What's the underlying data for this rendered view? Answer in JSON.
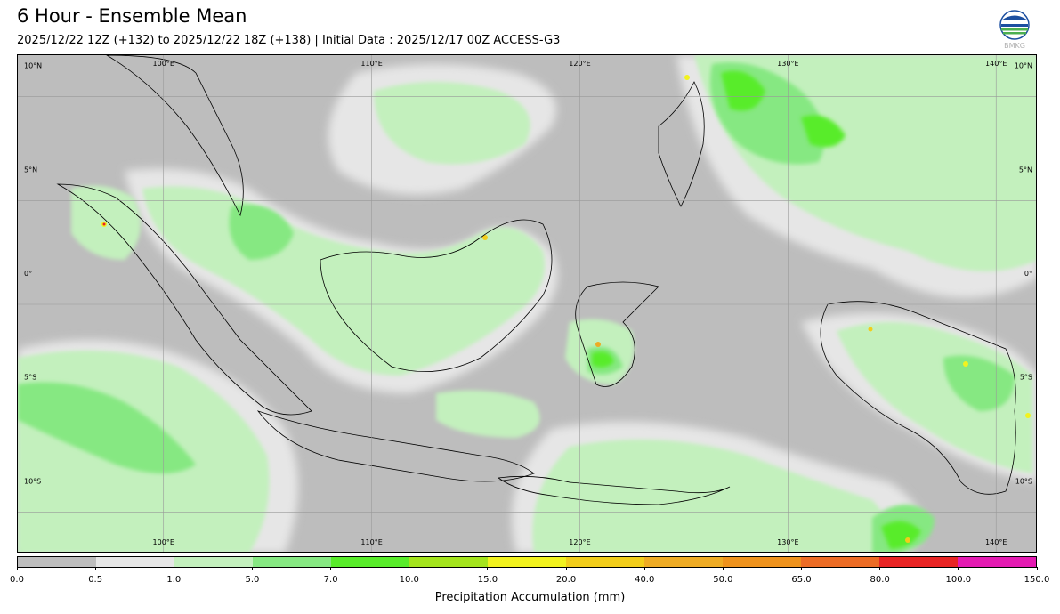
{
  "header": {
    "title": "6 Hour - Ensemble Mean",
    "subtitle": "2025/12/22 12Z (+132) to 2025/12/22 18Z (+138) | Initial Data : 2025/12/17 00Z ACCESS-G3",
    "logo_text": "BMKG"
  },
  "map": {
    "lon_labels": [
      "100°E",
      "110°E",
      "120°E",
      "130°E",
      "140°E"
    ],
    "lat_labels": [
      "10°N",
      "5°N",
      "0°",
      "5°S",
      "10°S"
    ],
    "lon_range": [
      93,
      142
    ],
    "lat_range": [
      -12,
      12
    ],
    "ocean_color": "#bdbdbd",
    "grid": true
  },
  "colorbar": {
    "label": "Precipitation Accumulation (mm)",
    "ticks": [
      "0.0",
      "0.5",
      "1.0",
      "5.0",
      "7.0",
      "10.0",
      "15.0",
      "20.0",
      "40.0",
      "50.0",
      "65.0",
      "80.0",
      "100.0",
      "150.0"
    ],
    "colors": [
      "#bdbdbd",
      "#e6e6e6",
      "#c3f0bd",
      "#86e882",
      "#58ec2a",
      "#a4e41c",
      "#f2f21e",
      "#f2cd1a",
      "#eeab24",
      "#ee921c",
      "#ec6c25",
      "#e82424",
      "#e41ab2"
    ]
  }
}
